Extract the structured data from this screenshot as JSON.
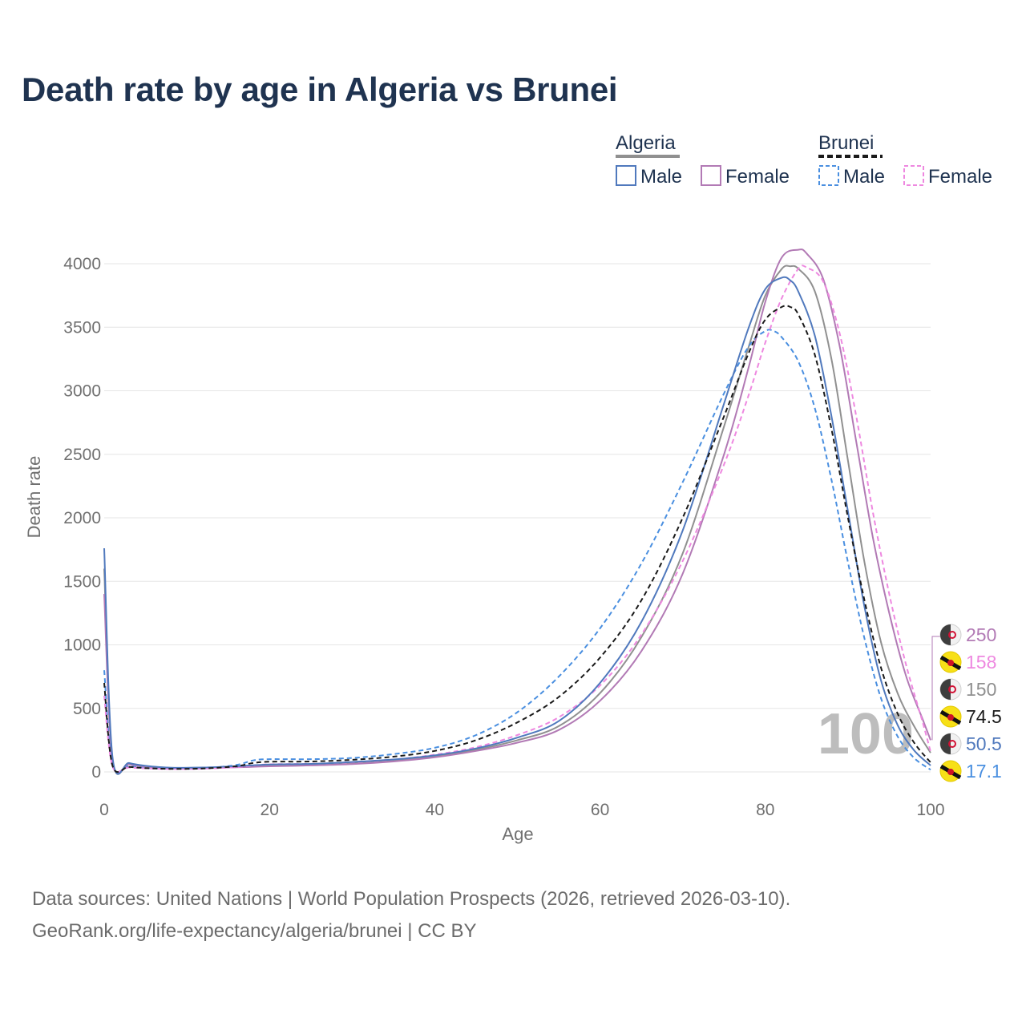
{
  "title": "Death rate by age in Algeria vs Brunei",
  "footer": {
    "line1": "Data sources: United Nations | World Population Prospects (2026, retrieved 2026-03-10).",
    "line2": "GeoRank.org/life-expectancy/algeria/brunei | CC BY"
  },
  "legend": {
    "groups": [
      {
        "country": "Algeria",
        "items": [
          "Male",
          "Female"
        ]
      },
      {
        "country": "Brunei",
        "items": [
          "Male",
          "Female"
        ]
      }
    ]
  },
  "colors": {
    "algeria_total": "#909090",
    "algeria_male": "#5079bd",
    "algeria_female": "#b27ab5",
    "brunei_total": "#1a1a1a",
    "brunei_male": "#4a8fe0",
    "brunei_female": "#ee88e0",
    "grid": "#e6e6e6",
    "axis_text": "#707070",
    "watermark": "#bdbdbd"
  },
  "chart_data": {
    "type": "line",
    "title": "Death rate by age in Algeria vs Brunei",
    "xlabel": "Age",
    "ylabel": "Death rate",
    "xlim": [
      0,
      100
    ],
    "ylim": [
      0,
      4000
    ],
    "xticks": [
      0,
      20,
      40,
      60,
      80,
      100
    ],
    "yticks": [
      0,
      500,
      1000,
      1500,
      2000,
      2500,
      3000,
      3500,
      4000
    ],
    "current_age_label": "100",
    "series": [
      {
        "name": "Algeria",
        "id": "algeria_total",
        "country": "Algeria",
        "sex": "Total",
        "style": "solid",
        "end_label": "150",
        "points": [
          [
            0,
            1600
          ],
          [
            1,
            105
          ],
          [
            3,
            65
          ],
          [
            5,
            45
          ],
          [
            8,
            32
          ],
          [
            12,
            33
          ],
          [
            16,
            40
          ],
          [
            20,
            50
          ],
          [
            25,
            57
          ],
          [
            30,
            70
          ],
          [
            35,
            90
          ],
          [
            40,
            125
          ],
          [
            45,
            175
          ],
          [
            50,
            250
          ],
          [
            55,
            360
          ],
          [
            60,
            620
          ],
          [
            65,
            1060
          ],
          [
            70,
            1720
          ],
          [
            75,
            2720
          ],
          [
            78,
            3350
          ],
          [
            80,
            3750
          ],
          [
            82,
            3960
          ],
          [
            83,
            3980
          ],
          [
            84,
            3960
          ],
          [
            86,
            3780
          ],
          [
            88,
            3250
          ],
          [
            90,
            2450
          ],
          [
            92,
            1650
          ],
          [
            94,
            1020
          ],
          [
            96,
            620
          ],
          [
            98,
            360
          ],
          [
            100,
            150
          ]
        ]
      },
      {
        "name": "Algeria Male",
        "id": "algeria_male",
        "country": "Algeria",
        "sex": "Male",
        "style": "solid",
        "end_label": "50.5",
        "points": [
          [
            0,
            1760
          ],
          [
            1,
            120
          ],
          [
            3,
            70
          ],
          [
            5,
            48
          ],
          [
            8,
            33
          ],
          [
            12,
            35
          ],
          [
            16,
            45
          ],
          [
            20,
            58
          ],
          [
            25,
            63
          ],
          [
            30,
            78
          ],
          [
            35,
            98
          ],
          [
            40,
            130
          ],
          [
            45,
            185
          ],
          [
            50,
            270
          ],
          [
            55,
            400
          ],
          [
            60,
            700
          ],
          [
            65,
            1180
          ],
          [
            70,
            1900
          ],
          [
            75,
            2900
          ],
          [
            78,
            3500
          ],
          [
            80,
            3800
          ],
          [
            82,
            3890
          ],
          [
            83,
            3870
          ],
          [
            84,
            3780
          ],
          [
            86,
            3430
          ],
          [
            88,
            2800
          ],
          [
            90,
            2050
          ],
          [
            92,
            1300
          ],
          [
            94,
            720
          ],
          [
            96,
            370
          ],
          [
            98,
            170
          ],
          [
            100,
            50.5
          ]
        ]
      },
      {
        "name": "Algeria Female",
        "id": "algeria_female",
        "country": "Algeria",
        "sex": "Female",
        "style": "solid",
        "end_label": "250",
        "points": [
          [
            0,
            1400
          ],
          [
            1,
            95
          ],
          [
            3,
            60
          ],
          [
            5,
            42
          ],
          [
            8,
            30
          ],
          [
            12,
            31
          ],
          [
            16,
            36
          ],
          [
            20,
            44
          ],
          [
            25,
            51
          ],
          [
            30,
            62
          ],
          [
            35,
            82
          ],
          [
            40,
            115
          ],
          [
            45,
            165
          ],
          [
            50,
            230
          ],
          [
            55,
            330
          ],
          [
            60,
            560
          ],
          [
            65,
            950
          ],
          [
            70,
            1560
          ],
          [
            75,
            2500
          ],
          [
            78,
            3190
          ],
          [
            80,
            3700
          ],
          [
            82,
            4050
          ],
          [
            84,
            4110
          ],
          [
            85,
            4080
          ],
          [
            87,
            3880
          ],
          [
            89,
            3350
          ],
          [
            91,
            2600
          ],
          [
            93,
            1850
          ],
          [
            95,
            1250
          ],
          [
            97,
            760
          ],
          [
            99,
            420
          ],
          [
            100,
            250
          ]
        ]
      },
      {
        "name": "Brunei",
        "id": "brunei_total",
        "country": "Brunei",
        "sex": "Total",
        "style": "dashed",
        "end_label": "74.5",
        "points": [
          [
            0,
            700
          ],
          [
            1,
            50
          ],
          [
            3,
            40
          ],
          [
            5,
            30
          ],
          [
            8,
            24
          ],
          [
            12,
            27
          ],
          [
            16,
            45
          ],
          [
            18,
            70
          ],
          [
            20,
            80
          ],
          [
            25,
            82
          ],
          [
            30,
            95
          ],
          [
            35,
            120
          ],
          [
            40,
            165
          ],
          [
            45,
            250
          ],
          [
            50,
            390
          ],
          [
            55,
            590
          ],
          [
            60,
            900
          ],
          [
            65,
            1350
          ],
          [
            70,
            2000
          ],
          [
            75,
            2800
          ],
          [
            78,
            3300
          ],
          [
            80,
            3560
          ],
          [
            82,
            3660
          ],
          [
            83,
            3660
          ],
          [
            84,
            3600
          ],
          [
            86,
            3280
          ],
          [
            88,
            2700
          ],
          [
            90,
            2000
          ],
          [
            92,
            1350
          ],
          [
            94,
            820
          ],
          [
            96,
            460
          ],
          [
            98,
            230
          ],
          [
            100,
            74.5
          ]
        ]
      },
      {
        "name": "Brunei Male",
        "id": "brunei_male",
        "country": "Brunei",
        "sex": "Male",
        "style": "dashed",
        "end_label": "17.1",
        "points": [
          [
            0,
            800
          ],
          [
            1,
            55
          ],
          [
            3,
            45
          ],
          [
            5,
            32
          ],
          [
            8,
            25
          ],
          [
            12,
            28
          ],
          [
            16,
            55
          ],
          [
            18,
            90
          ],
          [
            20,
            100
          ],
          [
            25,
            100
          ],
          [
            30,
            110
          ],
          [
            35,
            140
          ],
          [
            40,
            190
          ],
          [
            45,
            290
          ],
          [
            50,
            470
          ],
          [
            55,
            750
          ],
          [
            60,
            1130
          ],
          [
            65,
            1640
          ],
          [
            70,
            2280
          ],
          [
            75,
            2980
          ],
          [
            78,
            3350
          ],
          [
            80,
            3470
          ],
          [
            81,
            3470
          ],
          [
            82,
            3420
          ],
          [
            84,
            3230
          ],
          [
            86,
            2860
          ],
          [
            88,
            2300
          ],
          [
            90,
            1650
          ],
          [
            92,
            1050
          ],
          [
            94,
            580
          ],
          [
            96,
            280
          ],
          [
            98,
            110
          ],
          [
            100,
            17.1
          ]
        ]
      },
      {
        "name": "Brunei Female",
        "id": "brunei_female",
        "country": "Brunei",
        "sex": "Female",
        "style": "dashed",
        "end_label": "158",
        "points": [
          [
            0,
            600
          ],
          [
            1,
            45
          ],
          [
            3,
            35
          ],
          [
            5,
            28
          ],
          [
            8,
            22
          ],
          [
            12,
            25
          ],
          [
            16,
            38
          ],
          [
            18,
            50
          ],
          [
            20,
            60
          ],
          [
            25,
            64
          ],
          [
            30,
            76
          ],
          [
            35,
            98
          ],
          [
            40,
            135
          ],
          [
            45,
            195
          ],
          [
            50,
            290
          ],
          [
            55,
            430
          ],
          [
            60,
            680
          ],
          [
            65,
            1080
          ],
          [
            70,
            1660
          ],
          [
            75,
            2420
          ],
          [
            78,
            2970
          ],
          [
            80,
            3380
          ],
          [
            82,
            3730
          ],
          [
            84,
            3960
          ],
          [
            85,
            3970
          ],
          [
            87,
            3860
          ],
          [
            89,
            3450
          ],
          [
            91,
            2800
          ],
          [
            93,
            2050
          ],
          [
            95,
            1400
          ],
          [
            97,
            850
          ],
          [
            99,
            400
          ],
          [
            100,
            158
          ]
        ]
      }
    ]
  }
}
